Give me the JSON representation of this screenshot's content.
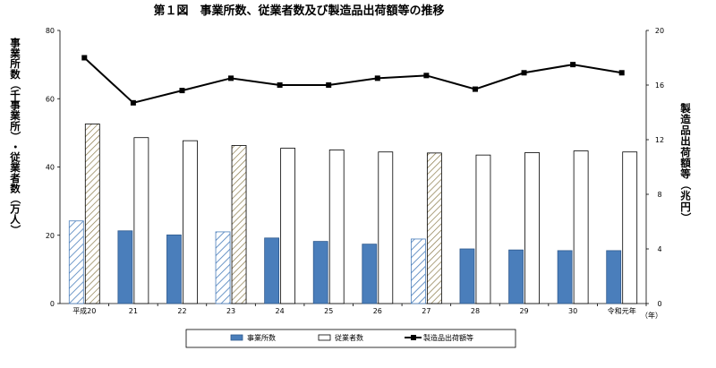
{
  "chart_data": {
    "type": "bar",
    "title": "第１図　事業所数、従業者数及び製造品出荷額等の推移",
    "ylabel_left": "事業所数（千事業所）・従業者数（万人）",
    "ylabel_right": "製造品出荷額等（兆円）",
    "x_unit": "（年）",
    "categories": [
      "平成20",
      "21",
      "22",
      "23",
      "24",
      "25",
      "26",
      "27",
      "28",
      "29",
      "30",
      "令和元年"
    ],
    "ylim_left": [
      0,
      80
    ],
    "yticks_left": [
      0,
      20,
      40,
      60,
      80
    ],
    "ylim_right": [
      0,
      20
    ],
    "yticks_right": [
      0,
      4,
      8,
      12,
      16,
      20
    ],
    "grid": false,
    "hatched_categories": [
      "平成20",
      "23",
      "27"
    ],
    "series": [
      {
        "name": "事業所数",
        "type": "bar",
        "axis": "left",
        "color": "#4a7ebb",
        "values": [
          24.2,
          21.3,
          20.1,
          21.0,
          19.2,
          18.2,
          17.4,
          18.9,
          16.0,
          15.7,
          15.5,
          15.5
        ]
      },
      {
        "name": "従業者数",
        "type": "bar",
        "axis": "left",
        "color": "#ffffff",
        "values": [
          52.6,
          48.6,
          47.7,
          46.3,
          45.5,
          45.0,
          44.4,
          44.1,
          43.5,
          44.2,
          44.7,
          44.4
        ]
      },
      {
        "name": "製造品出荷額等",
        "type": "line",
        "axis": "right",
        "color": "#000000",
        "values": [
          18.0,
          14.7,
          15.6,
          16.5,
          16.0,
          16.0,
          16.5,
          16.7,
          15.7,
          16.9,
          17.5,
          16.9
        ]
      }
    ],
    "legend_position": "bottom"
  }
}
